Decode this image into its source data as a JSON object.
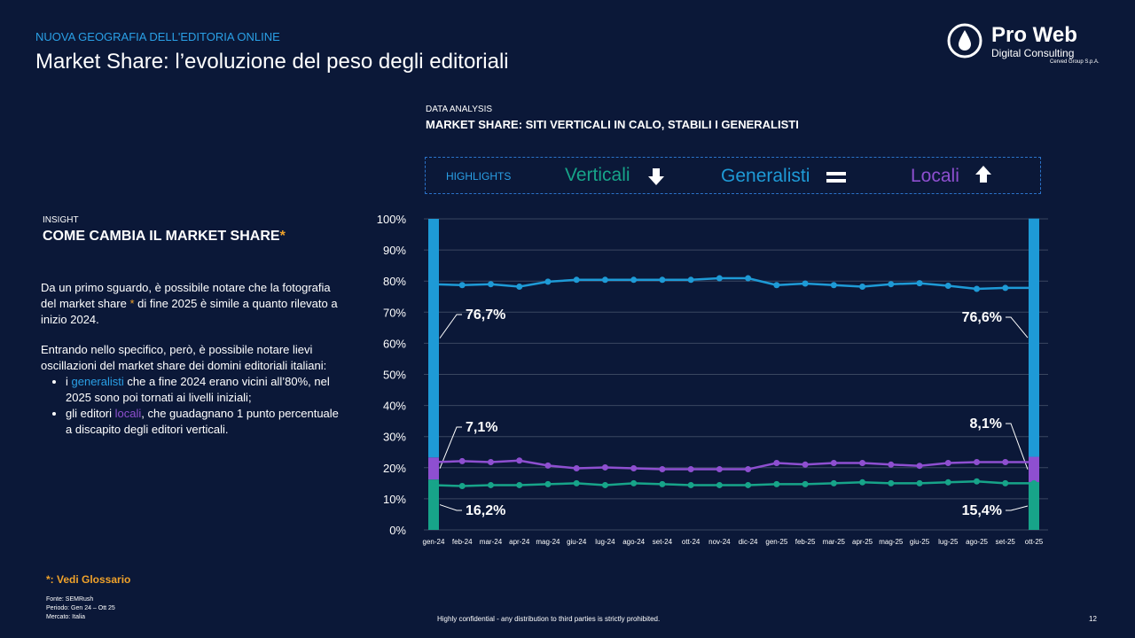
{
  "header": {
    "kicker": "NUOVA GEOGRAFIA DELL'EDITORIA ONLINE",
    "title": "Market Share: l’evoluzione del peso degli editoriali"
  },
  "logo": {
    "name": "Pro Web",
    "sub": "Digital Consulting",
    "group": "Cerved Group S.p.A."
  },
  "insight": {
    "kicker": "INSIGHT",
    "title": "COME CAMBIA IL MARKET SHARE",
    "star": "*",
    "p1": [
      "Da un primo sguardo, è possibile notare che la fotografia del market share ",
      "*",
      " di fine 2025 è simile a quanto rilevato a inizio 2024."
    ],
    "p2": "Entrando nello specifico, però, è possibile notare lievi oscillazioni del market share dei domini editoriali italiani:",
    "bullets": [
      [
        "i ",
        "generalisti",
        " che a fine 2024 erano vicini all’80%, nel 2025 sono poi tornati ai livelli iniziali;"
      ],
      [
        "gli editori ",
        "locali",
        ", che guadagnano 1 punto percentuale a discapito degli editori verticali."
      ]
    ]
  },
  "glossary": "*: Vedi Glossario",
  "sources": [
    "Fonte: SEMRush",
    "Periodo: Gen 24 – Ott 25",
    "Mercato: Italia"
  ],
  "footer": {
    "note": "Highly confidential - any distribution to third parties is strictly prohibited.",
    "page": "12"
  },
  "chart_data": {
    "type": "line",
    "kicker": "DATA ANALYSIS",
    "title": "MARKET SHARE: SITI VERTICALI IN CALO, STABILI I GENERALISTI",
    "highlights_label": "HIGHLIGHTS",
    "categories": [
      "gen-24",
      "feb-24",
      "mar-24",
      "apr-24",
      "mag-24",
      "giu-24",
      "lug-24",
      "ago-24",
      "set-24",
      "ott-24",
      "nov-24",
      "dic-24",
      "gen-25",
      "feb-25",
      "mar-25",
      "apr-25",
      "mag-25",
      "giu-25",
      "lug-25",
      "ago-25",
      "set-25",
      "ott-25"
    ],
    "ylim": [
      0,
      100
    ],
    "yticks": [
      {
        "value": 0,
        "label": "0%"
      },
      {
        "value": 10,
        "label": "10%"
      },
      {
        "value": 20,
        "label": "20%"
      },
      {
        "value": 30,
        "label": "30%"
      },
      {
        "value": 40,
        "label": "40%"
      },
      {
        "value": 50,
        "label": "50%"
      },
      {
        "value": 60,
        "label": "60%"
      },
      {
        "value": 70,
        "label": "70%"
      },
      {
        "value": 80,
        "label": "80%"
      },
      {
        "value": 90,
        "label": "90%"
      },
      {
        "value": 100,
        "label": "100%"
      }
    ],
    "grid": true,
    "series": [
      {
        "name": "Verticali",
        "color": "#17a489",
        "values": [
          14.4,
          14.1,
          14.4,
          14.4,
          14.7,
          15.0,
          14.4,
          15.0,
          14.7,
          14.4,
          14.4,
          14.4,
          14.7,
          14.7,
          15.0,
          15.3,
          15.0,
          15.0,
          15.3,
          15.6,
          15.0,
          15.0
        ],
        "bar_values": [
          16.2,
          15.4
        ],
        "bar_labels": [
          "16,2%",
          "15,4%"
        ]
      },
      {
        "name": "Generalisti",
        "color": "#1e9ad6",
        "values": [
          79.0,
          78.7,
          79.0,
          78.2,
          79.8,
          80.4,
          80.4,
          80.4,
          80.4,
          80.4,
          80.9,
          80.9,
          78.7,
          79.2,
          78.7,
          78.2,
          79.0,
          79.3,
          78.5,
          77.5,
          77.8,
          77.8
        ],
        "bar_values": [
          76.7,
          76.6
        ],
        "bar_labels": [
          "76,7%",
          "76,6%"
        ]
      },
      {
        "name": "Locali",
        "color": "#8e4fd0",
        "values": [
          21.8,
          22.1,
          21.8,
          22.3,
          20.7,
          19.8,
          20.1,
          19.8,
          19.5,
          19.5,
          19.5,
          19.5,
          21.5,
          21.0,
          21.5,
          21.5,
          21.0,
          20.6,
          21.5,
          21.8,
          21.8,
          21.8
        ],
        "bar_values": [
          7.1,
          8.1
        ],
        "bar_labels": [
          "7,1%",
          "8,1%"
        ]
      }
    ]
  }
}
